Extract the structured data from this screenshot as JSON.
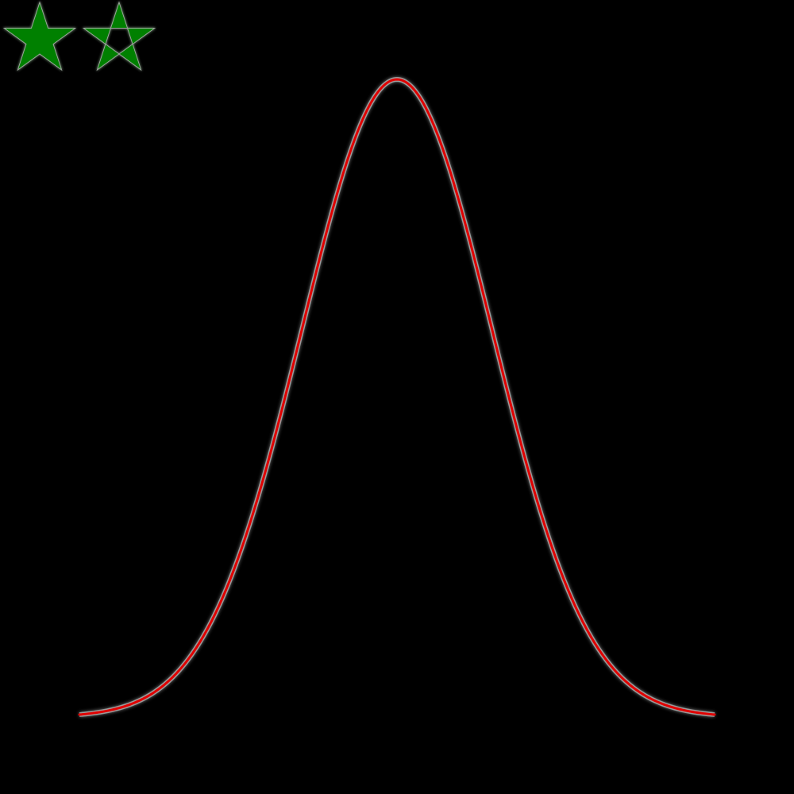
{
  "background_color": "#000000",
  "stars": {
    "color": "#008000",
    "items": [
      {
        "name": "star-solid-icon",
        "style": "solid"
      },
      {
        "name": "star-hollow-icon",
        "style": "hollow"
      }
    ]
  },
  "chart_data": {
    "type": "line",
    "title": "",
    "xlabel": "",
    "ylabel": "",
    "grid": false,
    "legend": "none",
    "xlim": [
      -4,
      4
    ],
    "ylim": [
      0,
      1
    ],
    "series": [
      {
        "color": "#e00000",
        "glow_color": "#ffffff",
        "function": "gaussian",
        "mean": 0,
        "sigma": 1.2,
        "peak": 1
      }
    ]
  }
}
